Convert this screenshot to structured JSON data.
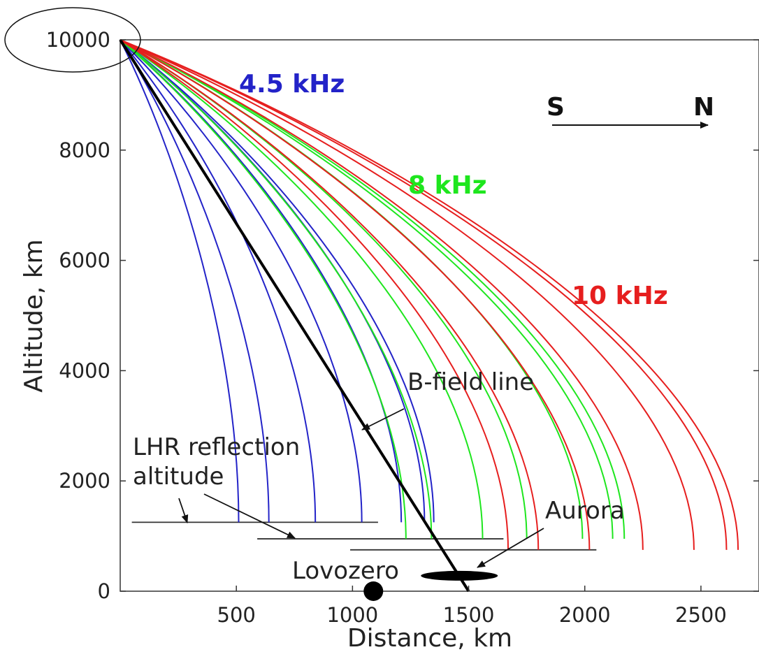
{
  "chart_data": {
    "type": "line",
    "xlabel": "Distance, km",
    "ylabel": "Altitude, km",
    "xlim": [
      0,
      2750
    ],
    "ylim": [
      0,
      10000
    ],
    "x_ticks": [
      "500",
      "1000",
      "1500",
      "2000",
      "2500"
    ],
    "y_ticks": [
      "0",
      "2000",
      "4000",
      "6000",
      "8000",
      "10000"
    ],
    "grid": false,
    "source_point": {
      "x": 0,
      "y": 10000
    },
    "series": [
      {
        "group": "4.5 kHz",
        "color": "#2323c8",
        "endpoints": [
          [
            510,
            1250
          ],
          [
            640,
            1250
          ],
          [
            840,
            1250
          ],
          [
            1040,
            1250
          ],
          [
            1210,
            1250
          ],
          [
            1310,
            1250
          ],
          [
            1350,
            1250
          ]
        ]
      },
      {
        "group": "8 kHz",
        "color": "#1ee61e",
        "endpoints": [
          [
            1230,
            950
          ],
          [
            1340,
            950
          ],
          [
            1560,
            950
          ],
          [
            1750,
            950
          ],
          [
            1990,
            950
          ],
          [
            2120,
            950
          ],
          [
            2170,
            950
          ]
        ]
      },
      {
        "group": "10 kHz",
        "color": "#e61e1e",
        "endpoints": [
          [
            1670,
            750
          ],
          [
            1800,
            750
          ],
          [
            2020,
            750
          ],
          [
            2250,
            750
          ],
          [
            2470,
            750
          ],
          [
            2610,
            750
          ],
          [
            2660,
            750
          ]
        ]
      }
    ],
    "field_line": {
      "label": "B-field line",
      "from": [
        0,
        10000
      ],
      "to": [
        1500,
        0
      ],
      "color": "#000000"
    },
    "reflection_levels": [
      {
        "y": 1250,
        "x_range": [
          50,
          1110
        ]
      },
      {
        "y": 950,
        "x_range": [
          590,
          1650
        ]
      },
      {
        "y": 750,
        "x_range": [
          990,
          2050
        ]
      }
    ],
    "annotations": {
      "freq_45": "4.5 kHz",
      "freq_8": "8 kHz",
      "freq_10": "10 kHz",
      "bfield": "B-field line",
      "lhr_line1": "LHR reflection",
      "lhr_line2": "altitude",
      "aurora": "Aurora",
      "station": "Lovozero",
      "dir_s": "S",
      "dir_n": "N"
    },
    "station_point": {
      "x": 1090,
      "y": 0
    },
    "aurora_ellipse": {
      "x": 1460,
      "y": 280
    }
  }
}
